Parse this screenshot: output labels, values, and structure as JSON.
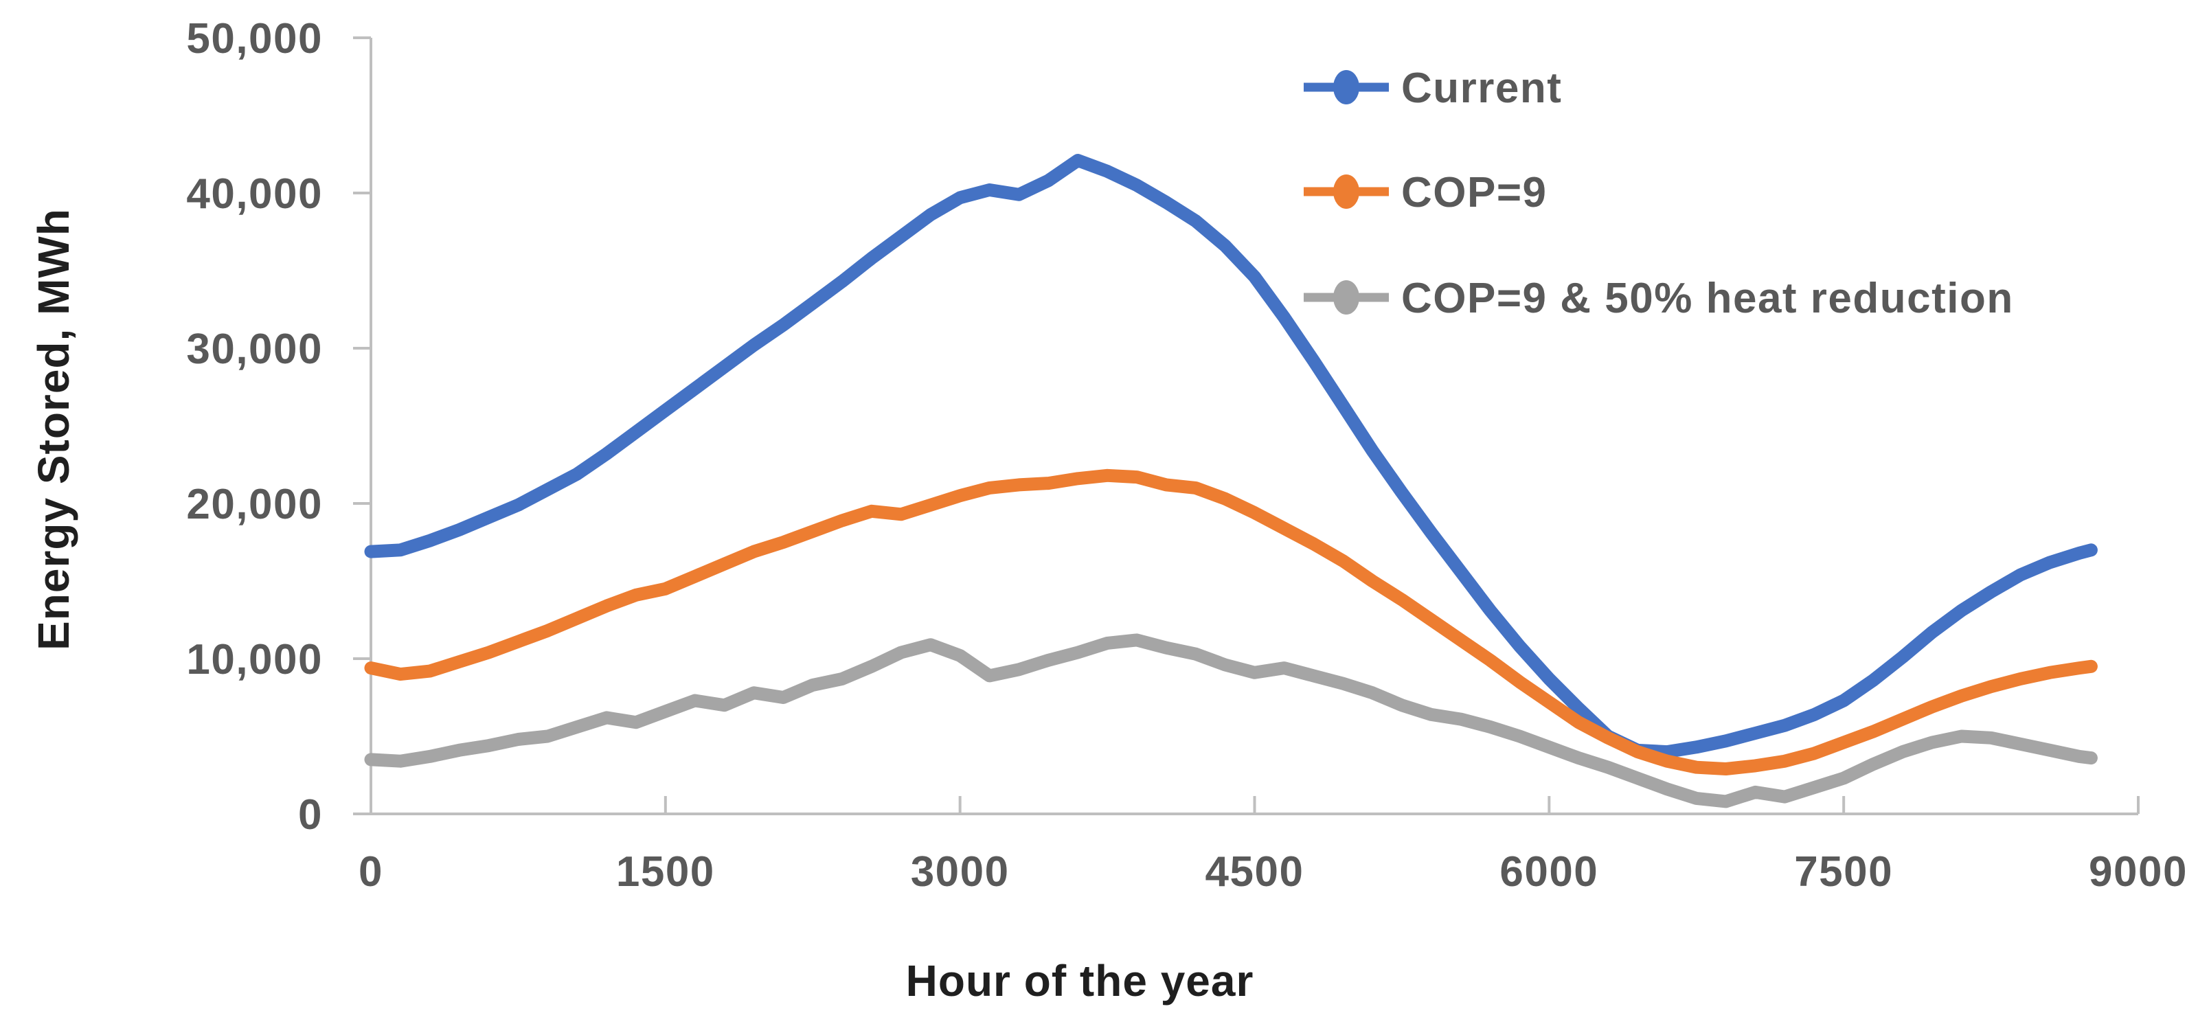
{
  "chart": {
    "y_title": "Energy Stored, MWh",
    "x_title": "Hour of the year",
    "axis_color": "#BFBFBF",
    "tick_label_color": "#595959",
    "title_color": "#1f1f1f",
    "background": "#ffffff"
  },
  "chart_data": {
    "type": "line",
    "title": "",
    "xlabel": "Hour of the year",
    "ylabel": "Energy Stored, MWh",
    "xlim": [
      0,
      9000
    ],
    "ylim": [
      0,
      50000
    ],
    "x_ticks": [
      0,
      1500,
      3000,
      4500,
      6000,
      7500,
      9000
    ],
    "x_tick_labels": [
      "0",
      "1500",
      "3000",
      "4500",
      "6000",
      "7500",
      "9000"
    ],
    "y_ticks": [
      0,
      10000,
      20000,
      30000,
      40000,
      50000
    ],
    "y_tick_labels": [
      "0",
      "10,000",
      "20,000",
      "30,000",
      "40,000",
      "50,000"
    ],
    "grid": false,
    "legend_position": "upper-right-inside",
    "x": [
      0,
      150,
      300,
      450,
      600,
      750,
      900,
      1050,
      1200,
      1350,
      1500,
      1650,
      1800,
      1950,
      2100,
      2250,
      2400,
      2550,
      2700,
      2850,
      3000,
      3150,
      3300,
      3450,
      3600,
      3750,
      3900,
      4050,
      4200,
      4350,
      4500,
      4650,
      4800,
      4950,
      5100,
      5250,
      5400,
      5550,
      5700,
      5850,
      6000,
      6150,
      6300,
      6450,
      6600,
      6750,
      6900,
      7050,
      7200,
      7350,
      7500,
      7650,
      7800,
      7950,
      8100,
      8250,
      8400,
      8550,
      8700,
      8760
    ],
    "series": [
      {
        "name": "Current",
        "color": "#4472C4",
        "values": [
          16900,
          17000,
          17600,
          18300,
          19100,
          19900,
          20900,
          21900,
          23200,
          24600,
          26000,
          27400,
          28800,
          30200,
          31500,
          32900,
          34300,
          35800,
          37200,
          38600,
          39700,
          40200,
          39900,
          40800,
          42100,
          41400,
          40500,
          39400,
          38200,
          36600,
          34600,
          32000,
          29200,
          26300,
          23400,
          20700,
          18100,
          15600,
          13100,
          10800,
          8700,
          6800,
          5000,
          4100,
          4000,
          4300,
          4700,
          5200,
          5700,
          6400,
          7300,
          8600,
          10100,
          11700,
          13100,
          14300,
          15400,
          16200,
          16800,
          17000
        ]
      },
      {
        "name": "COP=9",
        "color": "#ED7D31",
        "values": [
          9400,
          9000,
          9200,
          9800,
          10400,
          11100,
          11800,
          12600,
          13400,
          14100,
          14500,
          15300,
          16100,
          16900,
          17500,
          18200,
          18900,
          19500,
          19300,
          19900,
          20500,
          21000,
          21200,
          21300,
          21600,
          21800,
          21700,
          21200,
          21000,
          20300,
          19400,
          18400,
          17400,
          16300,
          15000,
          13800,
          12500,
          11200,
          9900,
          8500,
          7200,
          5900,
          4900,
          4000,
          3400,
          3000,
          2900,
          3100,
          3400,
          3900,
          4600,
          5300,
          6100,
          6900,
          7600,
          8200,
          8700,
          9100,
          9400,
          9500
        ]
      },
      {
        "name": "COP=9 & 50% heat reduction",
        "color": "#A5A5A5",
        "values": [
          3500,
          3400,
          3700,
          4100,
          4400,
          4800,
          5000,
          5600,
          6200,
          5900,
          6600,
          7300,
          7000,
          7800,
          7500,
          8300,
          8700,
          9500,
          10400,
          10900,
          10200,
          8900,
          9300,
          9900,
          10400,
          11000,
          11200,
          10700,
          10300,
          9600,
          9100,
          9400,
          8900,
          8400,
          7800,
          7000,
          6400,
          6100,
          5600,
          5000,
          4300,
          3600,
          3000,
          2300,
          1600,
          1000,
          800,
          1400,
          1100,
          1700,
          2300,
          3200,
          4000,
          4600,
          5000,
          4900,
          4500,
          4100,
          3700,
          3600
        ]
      }
    ]
  }
}
